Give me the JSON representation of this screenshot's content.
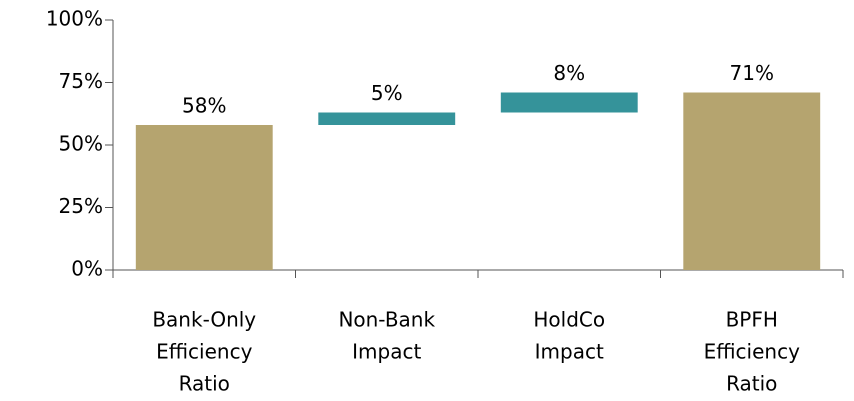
{
  "chart_data": {
    "type": "waterfall",
    "categories": [
      [
        "Bank-Only",
        "Efficiency",
        "Ratio"
      ],
      [
        "Non-Bank",
        "Impact"
      ],
      [
        "HoldCo",
        "Impact"
      ],
      [
        "BPFH",
        "Efficiency",
        "Ratio"
      ]
    ],
    "values": [
      58,
      5,
      8,
      71
    ],
    "value_labels": [
      "58%",
      "5%",
      "8%",
      "71%"
    ],
    "total_bars": [
      true,
      false,
      false,
      true
    ],
    "colors": [
      "#b5a46f",
      "#35939a",
      "#35939a",
      "#b5a46f"
    ],
    "ylim": [
      0,
      100
    ],
    "yticks": [
      {
        "value": 0,
        "label": "0%"
      },
      {
        "value": 25,
        "label": "25%"
      },
      {
        "value": 50,
        "label": "50%"
      },
      {
        "value": 75,
        "label": "75%"
      },
      {
        "value": 100,
        "label": "100%"
      }
    ]
  }
}
